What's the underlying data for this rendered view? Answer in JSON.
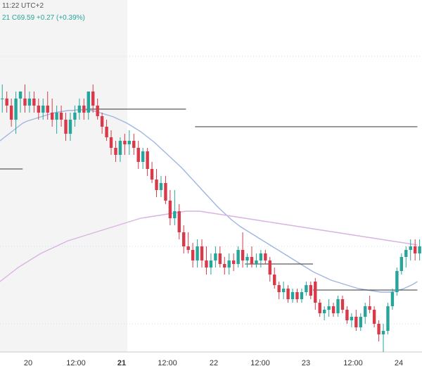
{
  "header": {
    "time_text": "11:22 UTC+2",
    "ohlc_text": "21  C69.59  +0.27 (+0.39%)"
  },
  "colors": {
    "up": "#26a69a",
    "down": "#d83a4a",
    "ma_fast": "#9fb6e0",
    "ma_slow": "#d9b4e2",
    "level": "#333333",
    "grid": "#d6dbe3",
    "shade": "#f4f4f4",
    "axis_text": "#333333"
  },
  "chart_data": {
    "type": "candlestick",
    "x_axis": {
      "ticks": [
        {
          "label": "20",
          "bold": false
        },
        {
          "label": "12:00",
          "bold": false
        },
        {
          "label": "21",
          "bold": true
        },
        {
          "label": "12:00",
          "bold": false
        },
        {
          "label": "22",
          "bold": false
        },
        {
          "label": "12:00",
          "bold": false
        },
        {
          "label": "23",
          "bold": false
        },
        {
          "label": "12:00",
          "bold": false
        },
        {
          "label": "24",
          "bold": false
        }
      ]
    },
    "ylim": [
      67.6,
      72.2
    ],
    "y_gridlines": [
      71.8,
      69.1,
      68.0
    ],
    "candles": [
      [
        71.2,
        71.4,
        71.0,
        71.2
      ],
      [
        71.2,
        71.3,
        71.0,
        71.1
      ],
      [
        71.1,
        71.2,
        70.8,
        70.9
      ],
      [
        70.9,
        71.3,
        70.7,
        71.2
      ],
      [
        71.2,
        71.3,
        71.0,
        71.3
      ],
      [
        71.2,
        71.4,
        71.0,
        71.1
      ],
      [
        71.1,
        71.3,
        71.0,
        71.2
      ],
      [
        71.2,
        71.3,
        71.0,
        71.1
      ],
      [
        71.1,
        71.2,
        70.9,
        71.0
      ],
      [
        71.0,
        71.2,
        70.9,
        71.1
      ],
      [
        71.1,
        71.3,
        70.9,
        71.0
      ],
      [
        71.0,
        71.2,
        70.8,
        70.9
      ],
      [
        70.9,
        71.1,
        70.7,
        71.0
      ],
      [
        71.0,
        71.1,
        70.8,
        70.9
      ],
      [
        70.9,
        71.0,
        70.6,
        70.7
      ],
      [
        70.7,
        71.0,
        70.6,
        70.9
      ],
      [
        70.9,
        71.1,
        70.8,
        71.0
      ],
      [
        71.0,
        71.2,
        70.9,
        71.1
      ],
      [
        71.1,
        71.2,
        70.9,
        71.0
      ],
      [
        71.0,
        71.3,
        70.9,
        71.3
      ],
      [
        71.3,
        71.4,
        71.0,
        71.1
      ],
      [
        71.1,
        71.2,
        70.9,
        70.95
      ],
      [
        70.95,
        71.0,
        70.7,
        70.8
      ],
      [
        70.8,
        70.9,
        70.6,
        70.65
      ],
      [
        70.65,
        70.75,
        70.4,
        70.5
      ],
      [
        70.5,
        70.6,
        70.3,
        70.4
      ],
      [
        70.4,
        70.65,
        70.3,
        70.6
      ],
      [
        70.6,
        70.7,
        70.4,
        70.55
      ],
      [
        70.55,
        70.75,
        70.4,
        70.6
      ],
      [
        70.6,
        70.7,
        70.4,
        70.5
      ],
      [
        70.5,
        70.6,
        70.2,
        70.3
      ],
      [
        70.3,
        70.5,
        70.2,
        70.45
      ],
      [
        70.45,
        70.5,
        70.1,
        70.2
      ],
      [
        70.2,
        70.3,
        70.0,
        70.05
      ],
      [
        70.05,
        70.2,
        69.8,
        69.9
      ],
      [
        69.9,
        70.1,
        69.8,
        70.0
      ],
      [
        70.0,
        70.1,
        69.7,
        69.75
      ],
      [
        69.75,
        69.9,
        69.4,
        69.5
      ],
      [
        69.5,
        69.9,
        69.4,
        69.6
      ],
      [
        69.6,
        69.7,
        69.2,
        69.3
      ],
      [
        69.3,
        69.4,
        69.0,
        69.1
      ],
      [
        69.1,
        69.3,
        69.0,
        69.05
      ],
      [
        69.05,
        69.15,
        68.8,
        68.9
      ],
      [
        68.9,
        69.2,
        68.8,
        69.1
      ],
      [
        69.1,
        69.2,
        68.8,
        68.9
      ],
      [
        68.9,
        69.1,
        68.7,
        68.8
      ],
      [
        68.8,
        69.0,
        68.7,
        68.9
      ],
      [
        68.9,
        69.1,
        68.8,
        69.0
      ],
      [
        69.0,
        69.1,
        68.8,
        68.85
      ],
      [
        68.85,
        68.95,
        68.7,
        68.8
      ],
      [
        68.8,
        69.0,
        68.7,
        68.9
      ],
      [
        68.9,
        69.0,
        68.75,
        68.85
      ],
      [
        68.85,
        69.1,
        68.8,
        69.05
      ],
      [
        69.05,
        69.3,
        68.8,
        68.9
      ],
      [
        68.9,
        69.0,
        68.8,
        68.95
      ],
      [
        68.95,
        69.1,
        68.8,
        68.85
      ],
      [
        68.85,
        69.0,
        68.8,
        68.9
      ],
      [
        68.9,
        69.05,
        68.8,
        69.0
      ],
      [
        69.0,
        69.05,
        68.85,
        68.9
      ],
      [
        68.9,
        68.95,
        68.6,
        68.7
      ],
      [
        68.7,
        68.8,
        68.5,
        68.55
      ],
      [
        68.55,
        68.6,
        68.35,
        68.45
      ],
      [
        68.45,
        68.6,
        68.35,
        68.5
      ],
      [
        68.5,
        68.55,
        68.3,
        68.35
      ],
      [
        68.35,
        68.5,
        68.3,
        68.45
      ],
      [
        68.45,
        68.5,
        68.3,
        68.35
      ],
      [
        68.35,
        68.5,
        68.3,
        68.45
      ],
      [
        68.45,
        68.6,
        68.4,
        68.55
      ],
      [
        68.55,
        68.6,
        68.35,
        68.4
      ],
      [
        68.6,
        68.65,
        68.2,
        68.3
      ],
      [
        68.3,
        68.35,
        68.1,
        68.15
      ],
      [
        68.15,
        68.25,
        68.05,
        68.2
      ],
      [
        68.2,
        68.35,
        68.1,
        68.25
      ],
      [
        68.25,
        68.3,
        68.1,
        68.15
      ],
      [
        68.15,
        68.4,
        68.1,
        68.35
      ],
      [
        68.35,
        68.4,
        68.15,
        68.2
      ],
      [
        68.2,
        68.25,
        68.0,
        68.05
      ],
      [
        68.05,
        68.15,
        67.95,
        68.1
      ],
      [
        68.1,
        68.2,
        67.9,
        67.95
      ],
      [
        67.95,
        68.15,
        67.9,
        68.1
      ],
      [
        68.1,
        68.3,
        68.0,
        68.25
      ],
      [
        68.25,
        68.4,
        68.15,
        68.2
      ],
      [
        68.2,
        68.25,
        67.95,
        68.0
      ],
      [
        68.0,
        68.05,
        67.75,
        67.85
      ],
      [
        67.85,
        68.0,
        67.6,
        67.9
      ],
      [
        67.9,
        68.3,
        67.85,
        68.25
      ],
      [
        68.25,
        68.5,
        68.2,
        68.45
      ],
      [
        68.45,
        68.8,
        68.4,
        68.75
      ],
      [
        68.75,
        69.0,
        68.7,
        68.95
      ],
      [
        68.95,
        69.1,
        68.8,
        69.05
      ],
      [
        69.05,
        69.2,
        68.9,
        69.1
      ],
      [
        69.1,
        69.2,
        68.9,
        69.0
      ],
      [
        69.0,
        69.2,
        68.9,
        69.1
      ]
    ],
    "series": [
      {
        "type": "line",
        "values": [
          70.6,
          70.65,
          70.7,
          70.75,
          70.8,
          70.85,
          70.88,
          70.9,
          70.92,
          70.94,
          70.96,
          70.98,
          71.0,
          71.01,
          71.02,
          71.03,
          71.03,
          71.04,
          71.04,
          71.04,
          71.03,
          71.02,
          71.0,
          70.98,
          70.96,
          70.94,
          70.91,
          70.88,
          70.85,
          70.81,
          70.77,
          70.73,
          70.68,
          70.63,
          70.58,
          70.52,
          70.46,
          70.4,
          70.34,
          70.28,
          70.22,
          70.15,
          70.08,
          70.01,
          69.94,
          69.87,
          69.8,
          69.73,
          69.66,
          69.6,
          69.54,
          69.48,
          69.43,
          69.38,
          69.34,
          69.3,
          69.26,
          69.22,
          69.18,
          69.14,
          69.1,
          69.06,
          69.02,
          68.98,
          68.94,
          68.9,
          68.86,
          68.82,
          68.78,
          68.74,
          68.71,
          68.68,
          68.65,
          68.62,
          68.6,
          68.58,
          68.56,
          68.54,
          68.52,
          68.5,
          68.49,
          68.48,
          68.47,
          68.46,
          68.45,
          68.45,
          68.45,
          68.46,
          68.48,
          68.5,
          68.53,
          68.56,
          68.6
        ]
      },
      {
        "type": "line",
        "values": [
          68.6,
          68.65,
          68.7,
          68.75,
          68.8,
          68.84,
          68.88,
          68.92,
          68.96,
          69.0,
          69.03,
          69.06,
          69.09,
          69.12,
          69.15,
          69.18,
          69.2,
          69.22,
          69.24,
          69.26,
          69.28,
          69.3,
          69.32,
          69.34,
          69.36,
          69.38,
          69.4,
          69.42,
          69.44,
          69.46,
          69.48,
          69.5,
          69.51,
          69.52,
          69.53,
          69.54,
          69.55,
          69.56,
          69.57,
          69.58,
          69.59,
          69.6,
          69.6,
          69.6,
          69.6,
          69.59,
          69.58,
          69.57,
          69.56,
          69.55,
          69.54,
          69.53,
          69.52,
          69.51,
          69.5,
          69.49,
          69.48,
          69.47,
          69.46,
          69.45,
          69.44,
          69.43,
          69.42,
          69.41,
          69.4,
          69.39,
          69.38,
          69.37,
          69.36,
          69.35,
          69.34,
          69.33,
          69.32,
          69.31,
          69.3,
          69.29,
          69.28,
          69.27,
          69.26,
          69.25,
          69.24,
          69.23,
          69.22,
          69.21,
          69.2,
          69.19,
          69.18,
          69.17,
          69.16,
          69.15,
          69.14,
          69.13,
          69.12
        ]
      }
    ],
    "levels": [
      {
        "value": 71.05,
        "from": 19,
        "to": 41
      },
      {
        "value": 70.8,
        "from": 43,
        "to": 92
      },
      {
        "value": 70.2,
        "from": -2,
        "to": 5
      },
      {
        "value": 68.85,
        "from": 54,
        "to": 69
      },
      {
        "value": 68.48,
        "from": 69,
        "to": 92
      }
    ]
  }
}
